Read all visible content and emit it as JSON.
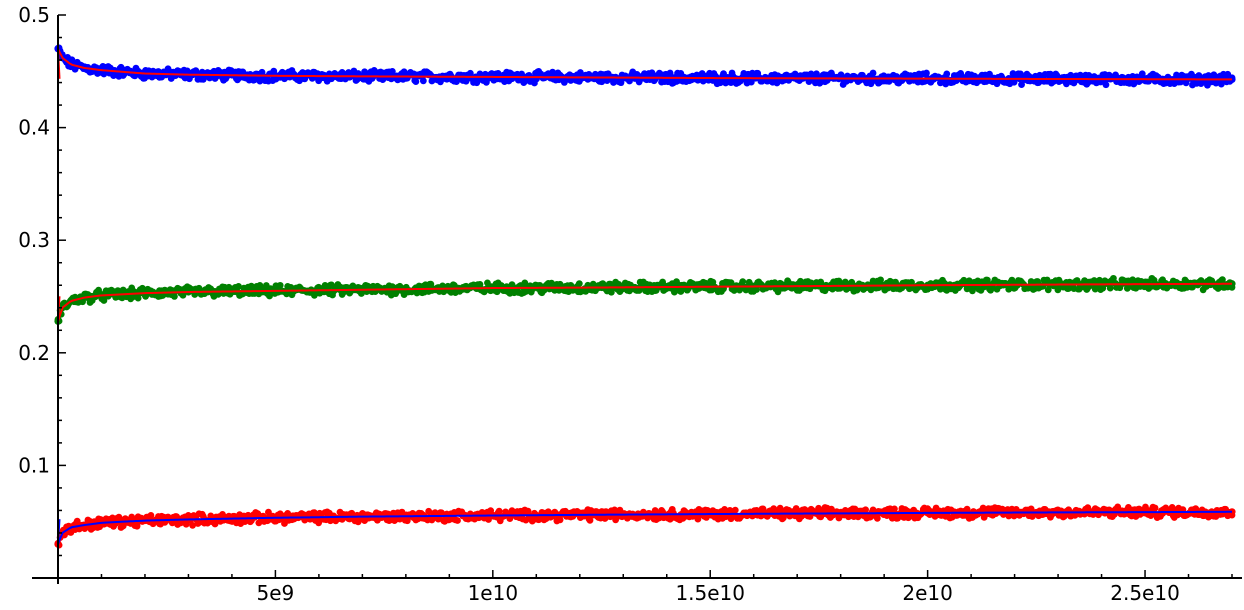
{
  "chart_data": {
    "type": "scatter",
    "title": "",
    "xlabel": "",
    "ylabel": "",
    "xlim": [
      0,
      27000000000
    ],
    "ylim": [
      0,
      0.5
    ],
    "grid": false,
    "x_ticks": [
      {
        "value": 5000000000,
        "label": "5e9"
      },
      {
        "value": 10000000000,
        "label": "1e10"
      },
      {
        "value": 15000000000,
        "label": "1.5e10"
      },
      {
        "value": 20000000000,
        "label": "2e10"
      },
      {
        "value": 25000000000,
        "label": "2.5e10"
      }
    ],
    "y_ticks": [
      {
        "value": 0.1,
        "label": "0.1"
      },
      {
        "value": 0.2,
        "label": "0.2"
      },
      {
        "value": 0.3,
        "label": "0.3"
      },
      {
        "value": 0.4,
        "label": "0.4"
      },
      {
        "value": 0.5,
        "label": "0.5"
      }
    ],
    "series": [
      {
        "color": "#0000ff",
        "fit_color": "#ff0000",
        "x": [
          0,
          100000000,
          300000000,
          600000000,
          1000000000,
          2000000000,
          3000000000,
          5000000000,
          7000000000,
          10000000000,
          12500000000,
          15000000000,
          17500000000,
          20000000000,
          22500000000,
          25000000000,
          27000000000
        ],
        "values": [
          0.47,
          0.462,
          0.456,
          0.453,
          0.451,
          0.448,
          0.447,
          0.446,
          0.4455,
          0.445,
          0.4445,
          0.444,
          0.4437,
          0.4435,
          0.4432,
          0.443,
          0.4428
        ]
      },
      {
        "color": "#008000",
        "fit_color": "#ff0000",
        "x": [
          0,
          100000000,
          300000000,
          600000000,
          1000000000,
          2000000000,
          3000000000,
          5000000000,
          7000000000,
          10000000000,
          12500000000,
          15000000000,
          17500000000,
          20000000000,
          22500000000,
          25000000000,
          27000000000
        ],
        "values": [
          0.228,
          0.24,
          0.246,
          0.249,
          0.251,
          0.253,
          0.254,
          0.255,
          0.256,
          0.2575,
          0.258,
          0.2587,
          0.2593,
          0.26,
          0.2605,
          0.261,
          0.2613
        ]
      },
      {
        "color": "#ff0000",
        "fit_color": "#0000ff",
        "x": [
          0,
          100000000,
          300000000,
          600000000,
          1000000000,
          2000000000,
          3000000000,
          5000000000,
          7000000000,
          10000000000,
          12500000000,
          15000000000,
          17500000000,
          20000000000,
          22500000000,
          25000000000,
          27000000000
        ],
        "values": [
          0.03,
          0.04,
          0.045,
          0.047,
          0.049,
          0.051,
          0.052,
          0.0535,
          0.0545,
          0.0555,
          0.0562,
          0.0568,
          0.0573,
          0.0578,
          0.0582,
          0.0585,
          0.0588
        ]
      }
    ]
  }
}
